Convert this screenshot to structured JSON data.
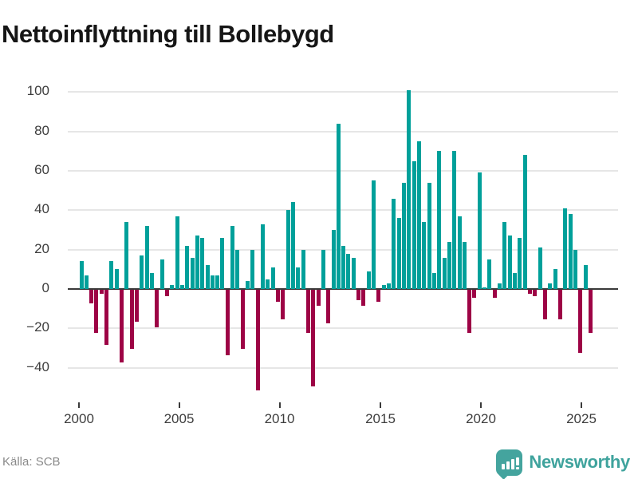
{
  "title": "Nettoinflyttning till Bollebygd",
  "source": "Källa: SCB",
  "brand": {
    "name": "Newsworthy"
  },
  "colors": {
    "positive": "#00a09a",
    "negative": "#9d0345",
    "grid": "#e6e6e6",
    "zero_line": "#3a3a3a",
    "axis_text": "#3d3d3d",
    "title_text": "#161616",
    "source_text": "#8a8a8a",
    "brand_teal": "#44a49e"
  },
  "chart_data": {
    "type": "bar",
    "title": "Nettoinflyttning till Bollebygd",
    "xlabel": "",
    "ylabel": "",
    "frequency": "quarterly",
    "start_period": "2000 Q1",
    "values": [
      14,
      7,
      -7,
      -22,
      -2,
      -28,
      14,
      10,
      -37,
      34,
      -30,
      -16,
      17,
      32,
      8,
      -19,
      15,
      -3,
      2,
      37,
      2,
      22,
      16,
      27,
      26,
      12,
      7,
      7,
      26,
      -33,
      32,
      20,
      -30,
      4,
      20,
      -51,
      33,
      5,
      11,
      -6,
      -15,
      40,
      44,
      11,
      20,
      -22,
      -49,
      -8,
      20,
      -17,
      30,
      84,
      22,
      18,
      16,
      -5,
      -8,
      9,
      55,
      -6,
      2,
      3,
      46,
      36,
      54,
      101,
      65,
      75,
      34,
      54,
      8,
      70,
      16,
      24,
      70,
      37,
      24,
      -22,
      -4,
      59,
      1,
      15,
      -4,
      3,
      34,
      27,
      8,
      26,
      68,
      -2,
      -3,
      21,
      -15,
      3,
      10,
      -15,
      41,
      38,
      20,
      -32,
      12,
      -22
    ],
    "x_tick_labels": [
      "2000",
      "2005",
      "2010",
      "2015",
      "2020",
      "2025"
    ],
    "y_tick_values": [
      100,
      80,
      60,
      40,
      20,
      0,
      -20,
      -40
    ],
    "ylim": [
      -55,
      107
    ],
    "grid": "horizontal",
    "legend": "none",
    "positive_color": "#00a09a",
    "negative_color": "#9d0345"
  }
}
